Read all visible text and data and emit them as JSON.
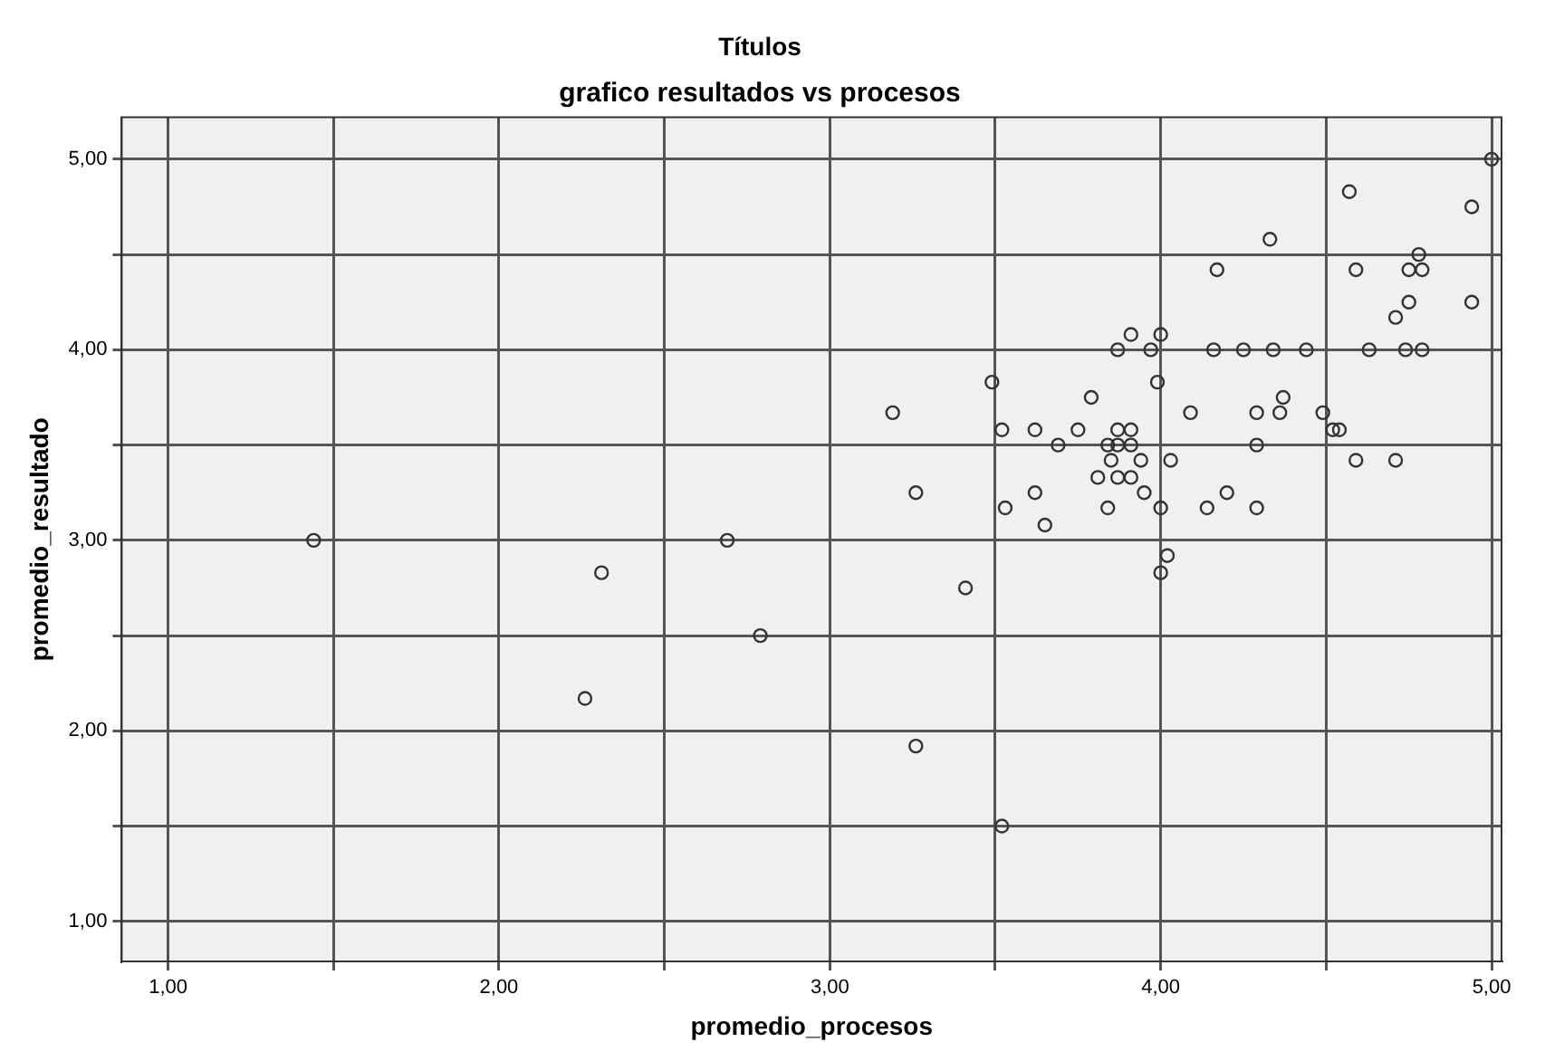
{
  "chart_data": {
    "type": "scatter",
    "title": "Títulos",
    "subtitle": "grafico resultados vs procesos",
    "xlabel": "promedio_procesos",
    "ylabel": "promedio_resultado",
    "x": [
      1.44,
      2.31,
      2.69,
      2.79,
      2.26,
      3.41,
      3.26,
      3.52,
      3.26,
      5.0,
      4.57,
      4.94,
      4.33,
      4.78,
      4.17,
      4.59,
      4.75,
      4.79,
      4.75,
      4.94,
      4.71,
      3.91,
      4.0,
      3.87,
      3.97,
      4.16,
      4.25,
      4.34,
      4.44,
      4.63,
      4.74,
      4.79,
      3.49,
      3.99,
      3.79,
      4.37,
      3.19,
      4.09,
      4.29,
      4.36,
      4.49,
      3.52,
      3.62,
      3.75,
      3.87,
      3.91,
      4.52,
      4.54,
      3.69,
      3.84,
      3.87,
      3.91,
      4.29,
      3.85,
      3.94,
      4.03,
      4.59,
      4.71,
      3.81,
      3.87,
      3.91,
      3.62,
      3.95,
      4.2,
      3.53,
      3.84,
      4.0,
      4.14,
      4.29,
      3.65,
      4.02,
      4.0
    ],
    "series": [
      {
        "color": "#333333",
        "values": [
          3.0,
          2.83,
          3.0,
          2.5,
          2.17,
          2.75,
          1.92,
          1.5,
          3.25,
          5.0,
          4.83,
          4.75,
          4.58,
          4.5,
          4.42,
          4.42,
          4.42,
          4.42,
          4.25,
          4.25,
          4.17,
          4.08,
          4.08,
          4.0,
          4.0,
          4.0,
          4.0,
          4.0,
          4.0,
          4.0,
          4.0,
          4.0,
          3.83,
          3.83,
          3.75,
          3.75,
          3.67,
          3.67,
          3.67,
          3.67,
          3.67,
          3.58,
          3.58,
          3.58,
          3.58,
          3.58,
          3.58,
          3.58,
          3.5,
          3.5,
          3.5,
          3.5,
          3.5,
          3.42,
          3.42,
          3.42,
          3.42,
          3.42,
          3.33,
          3.33,
          3.33,
          3.25,
          3.25,
          3.25,
          3.17,
          3.17,
          3.17,
          3.17,
          3.17,
          3.08,
          2.92,
          2.83
        ]
      }
    ],
    "xlim": [
      0.86,
      5.03
    ],
    "ylim": [
      0.79,
      5.22
    ],
    "xticks": [
      {
        "value": 1,
        "label": "1,00"
      },
      {
        "value": 1.5,
        "label": null
      },
      {
        "value": 2,
        "label": "2,00"
      },
      {
        "value": 2.5,
        "label": null
      },
      {
        "value": 3,
        "label": "3,00"
      },
      {
        "value": 3.5,
        "label": null
      },
      {
        "value": 4,
        "label": "4,00"
      },
      {
        "value": 4.5,
        "label": null
      },
      {
        "value": 5,
        "label": "5,00"
      }
    ],
    "yticks": [
      {
        "value": 1,
        "label": "1,00"
      },
      {
        "value": 1.5,
        "label": null
      },
      {
        "value": 2,
        "label": "2,00"
      },
      {
        "value": 2.5,
        "label": null
      },
      {
        "value": 3,
        "label": "3,00"
      },
      {
        "value": 3.5,
        "label": null
      },
      {
        "value": 4,
        "label": "4,00"
      },
      {
        "value": 4.5,
        "label": null
      },
      {
        "value": 5,
        "label": "5,00"
      }
    ],
    "grid": true,
    "marker": "circle"
  }
}
